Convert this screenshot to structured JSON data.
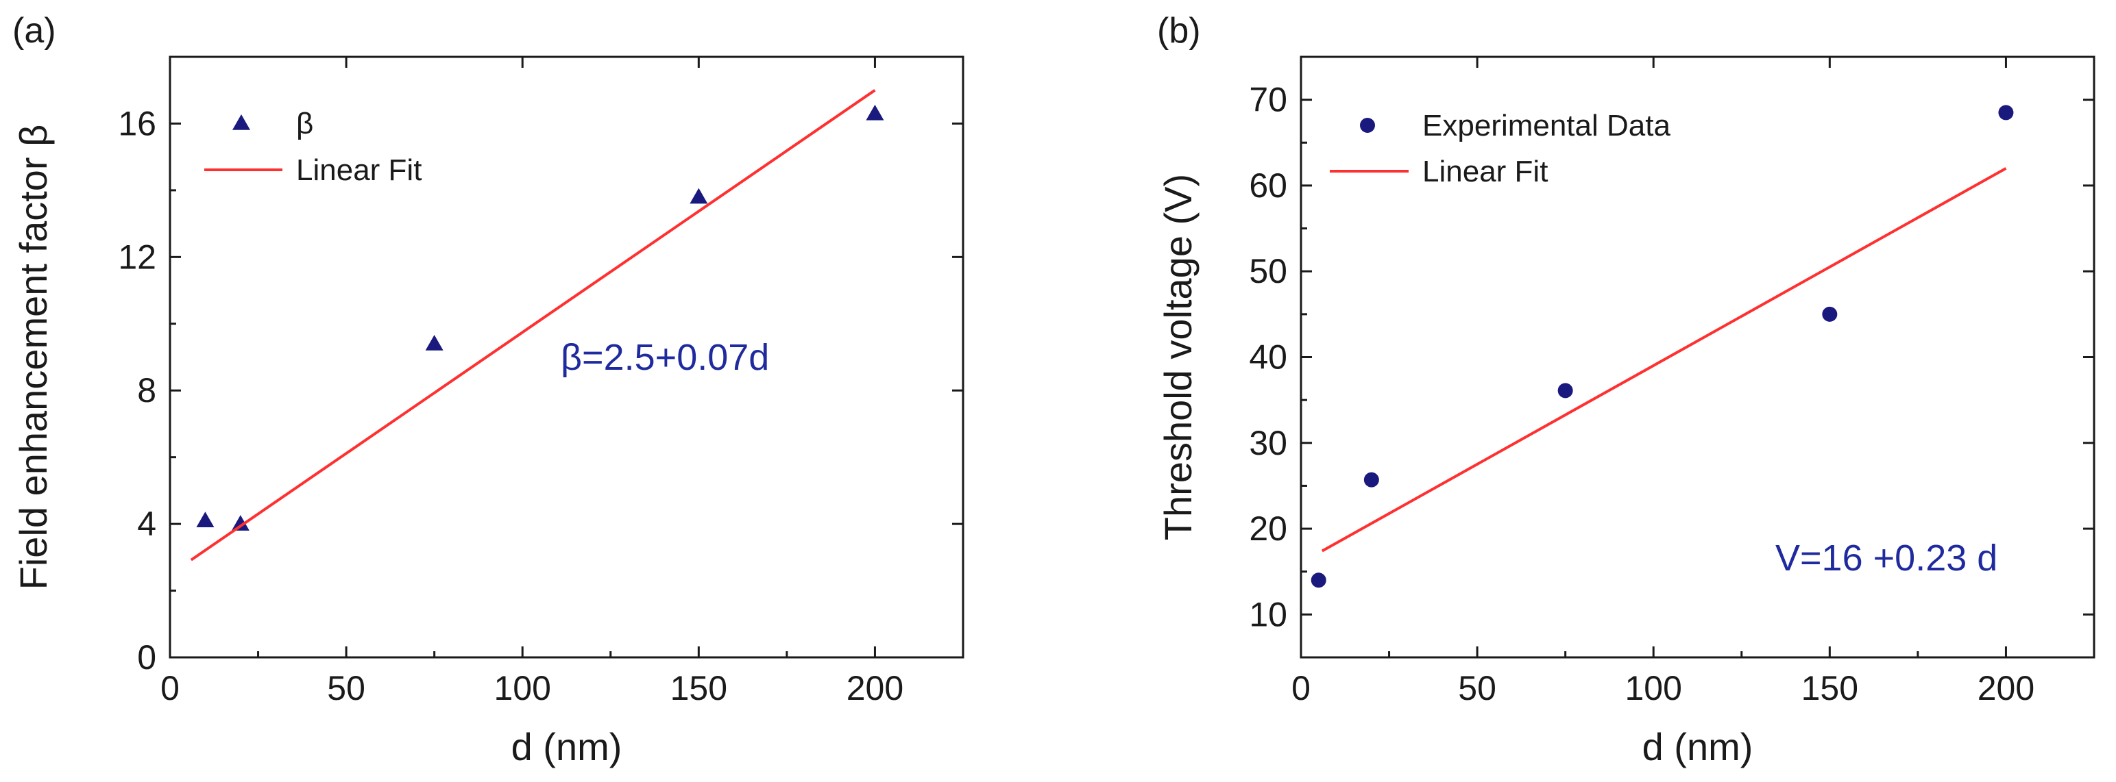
{
  "chart_data": [
    {
      "panel": "(a)",
      "type": "scatter",
      "xlabel": "d (nm)",
      "ylabel": "Field enhancement factor β",
      "xlim": [
        0,
        225
      ],
      "ylim": [
        0,
        18
      ],
      "xticks": [
        0,
        50,
        100,
        150,
        200
      ],
      "yticks": [
        0,
        4,
        8,
        12,
        16
      ],
      "series": [
        {
          "name": "β",
          "kind": "scatter",
          "marker": "triangle",
          "color": "#1a1a7e",
          "x": [
            10,
            20,
            75,
            150,
            200
          ],
          "y": [
            4.1,
            4.0,
            9.4,
            13.8,
            16.3
          ]
        },
        {
          "name": "Linear Fit",
          "kind": "line",
          "color": "#ff3030",
          "x": [
            6,
            200
          ],
          "y": [
            2.92,
            17.0
          ]
        }
      ],
      "annotation": {
        "text": "β=2.5+0.07d",
        "color": "#1f2a9e"
      },
      "legend_position": "top-left"
    },
    {
      "panel": "(b)",
      "type": "scatter",
      "xlabel": "d (nm)",
      "ylabel": "Threshold voltage (V)",
      "xlim": [
        0,
        225
      ],
      "ylim": [
        5,
        75
      ],
      "xticks": [
        0,
        50,
        100,
        150,
        200
      ],
      "yticks": [
        10,
        20,
        30,
        40,
        50,
        60,
        70
      ],
      "series": [
        {
          "name": "Experimental Data",
          "kind": "scatter",
          "marker": "circle",
          "color": "#1a1a7e",
          "x": [
            5,
            20,
            75,
            150,
            200
          ],
          "y": [
            14,
            25.7,
            36.1,
            45,
            68.5
          ]
        },
        {
          "name": "Linear Fit",
          "kind": "line",
          "color": "#ff3030",
          "x": [
            6,
            200
          ],
          "y": [
            17.4,
            62
          ]
        }
      ],
      "annotation": {
        "text": "V=16 +0.23 d",
        "color": "#1f2a9e"
      },
      "legend_position": "top-left"
    }
  ]
}
